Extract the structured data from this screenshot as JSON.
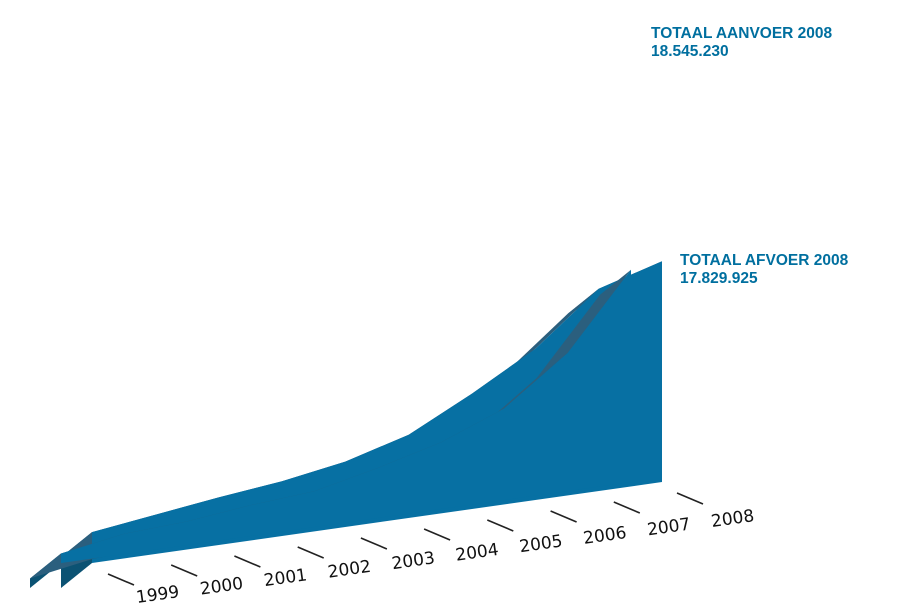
{
  "chart_data": {
    "type": "area",
    "style": "3d-stacked-ribbon",
    "title": "",
    "xlabel": "",
    "ylabel": "",
    "categories": [
      "1999",
      "2000",
      "2001",
      "2002",
      "2003",
      "2004",
      "2005",
      "2006",
      "2007",
      "2008"
    ],
    "grid": false,
    "legend": "none",
    "series": [
      {
        "key": "aanvoer",
        "values": [
          2600000,
          3300000,
          4000000,
          4600000,
          5500000,
          7000000,
          9700000,
          12700000,
          17000000,
          18545230
        ],
        "top_color": "#2b5f7e",
        "front_color": "#0770a3",
        "side_color": "#0b5273"
      },
      {
        "key": "afvoer",
        "values": [
          800000,
          1700000,
          2000000,
          2600000,
          3000000,
          4200000,
          5600000,
          7700000,
          11600000,
          17829925
        ],
        "top_color": "#2b5f7e",
        "front_color": "#0770a3",
        "side_color": "#0b5273"
      }
    ],
    "annotations": {
      "aanvoer": {
        "label": "TOTAAL AANVOER 2008",
        "value_text": "18.545.230"
      },
      "afvoer": {
        "label": "TOTAAL AFVOER 2008",
        "value_text": "17.829.925"
      }
    },
    "label_color": "#006f9f"
  }
}
